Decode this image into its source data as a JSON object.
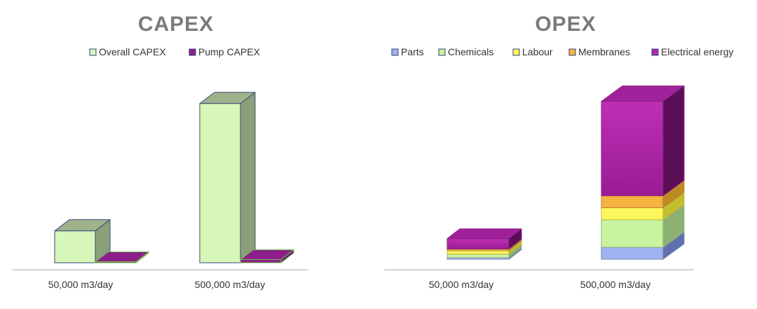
{
  "chart_data": [
    {
      "type": "bar",
      "title": "CAPEX",
      "categories": [
        "50,000 m3/day",
        "500,000 m3/day"
      ],
      "series": [
        {
          "name": "Overall CAPEX",
          "values": [
            20,
            100
          ],
          "color": "#d6f7b8"
        },
        {
          "name": "Pump CAPEX",
          "values": [
            0.4,
            2
          ],
          "color": "#8e1f8a"
        }
      ],
      "ylim": [
        0,
        110
      ],
      "grid": false,
      "legend": "top"
    },
    {
      "type": "bar",
      "stacked": true,
      "title": "OPEX",
      "categories": [
        "50,000 m3/day",
        "500,000 m3/day"
      ],
      "series": [
        {
          "name": "Parts",
          "values": [
            1,
            7
          ],
          "color": "#9fb3f0"
        },
        {
          "name": "Chemicals",
          "values": [
            2,
            16
          ],
          "color": "#c8f3a0"
        },
        {
          "name": "Labour",
          "values": [
            2,
            7
          ],
          "color": "#fdf65a"
        },
        {
          "name": "Membranes",
          "values": [
            1,
            7
          ],
          "color": "#f5b342"
        },
        {
          "name": "Electrical energy",
          "values": [
            6,
            55
          ],
          "color": "#b12aa9"
        }
      ],
      "ylim": [
        0,
        100
      ],
      "grid": false,
      "legend": "top"
    }
  ]
}
